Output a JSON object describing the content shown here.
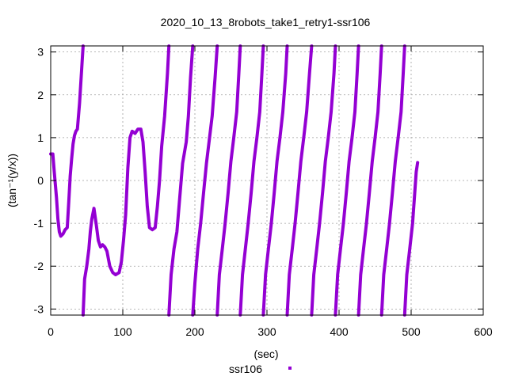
{
  "chart_data": {
    "type": "scatter",
    "title": "2020_10_13_8robots_take1_retry1-ssr106",
    "xlabel": "(sec)",
    "ylabel": "(tan⁻¹(y/x))",
    "xlim": [
      0,
      600
    ],
    "ylim": [
      -3.14159,
      3.14159
    ],
    "xticks": [
      0,
      100,
      200,
      300,
      400,
      500,
      600
    ],
    "xtick_labels": [
      "0",
      "100",
      "200",
      "300",
      "400",
      "500",
      "600"
    ],
    "yticks": [
      -3,
      -2,
      -1,
      0,
      1,
      2,
      3
    ],
    "ytick_labels": [
      "-3",
      "-2",
      "-1",
      "0",
      "1",
      "2",
      "3"
    ],
    "grid": true,
    "legend_position": "bottom-center",
    "series": [
      {
        "name": "ssr106",
        "color": "#9400d3",
        "segments": [
          [
            [
              0,
              0.62
            ],
            [
              3,
              0.62
            ],
            [
              5,
              0.2
            ],
            [
              8,
              -0.4
            ],
            [
              10,
              -0.9
            ],
            [
              12,
              -1.2
            ],
            [
              14,
              -1.3
            ],
            [
              17,
              -1.25
            ],
            [
              20,
              -1.15
            ],
            [
              23,
              -1.1
            ],
            [
              25,
              -0.5
            ],
            [
              27,
              0.1
            ],
            [
              29,
              0.5
            ],
            [
              31,
              0.85
            ],
            [
              33,
              1.05
            ],
            [
              35,
              1.15
            ],
            [
              37,
              1.2
            ],
            [
              40,
              1.8
            ],
            [
              43,
              2.6
            ],
            [
              45,
              3.14
            ]
          ],
          [
            [
              45,
              -3.14
            ],
            [
              47,
              -2.3
            ],
            [
              50,
              -2.0
            ],
            [
              53,
              -1.6
            ],
            [
              55,
              -1.2
            ],
            [
              57,
              -0.9
            ],
            [
              60,
              -0.65
            ],
            [
              63,
              -1.0
            ],
            [
              66,
              -1.4
            ],
            [
              69,
              -1.55
            ],
            [
              72,
              -1.5
            ],
            [
              75,
              -1.55
            ],
            [
              78,
              -1.65
            ],
            [
              82,
              -2.0
            ],
            [
              86,
              -2.15
            ],
            [
              90,
              -2.2
            ],
            [
              95,
              -2.15
            ],
            [
              98,
              -1.9
            ],
            [
              101,
              -1.4
            ],
            [
              104,
              -0.8
            ],
            [
              107,
              0.3
            ],
            [
              110,
              1.0
            ],
            [
              113,
              1.15
            ],
            [
              117,
              1.1
            ],
            [
              121,
              1.2
            ],
            [
              125,
              1.2
            ],
            [
              128,
              0.9
            ],
            [
              131,
              0.2
            ],
            [
              134,
              -0.6
            ],
            [
              137,
              -1.1
            ],
            [
              141,
              -1.15
            ],
            [
              145,
              -1.1
            ],
            [
              148,
              -0.6
            ],
            [
              151,
              0.0
            ],
            [
              154,
              0.8
            ],
            [
              158,
              1.5
            ],
            [
              162,
              2.5
            ],
            [
              164,
              3.14
            ]
          ],
          [
            [
              164,
              -3.14
            ],
            [
              167,
              -2.2
            ],
            [
              171,
              -1.6
            ],
            [
              175,
              -1.2
            ],
            [
              179,
              -0.4
            ],
            [
              183,
              0.4
            ],
            [
              188,
              0.9
            ],
            [
              191,
              1.5
            ],
            [
              194,
              2.4
            ],
            [
              197,
              3.14
            ]
          ],
          [
            [
              197,
              -3.14
            ],
            [
              200,
              -2.4
            ],
            [
              204,
              -1.6
            ],
            [
              208,
              -1.0
            ],
            [
              212,
              -0.3
            ],
            [
              216,
              0.4
            ],
            [
              220,
              0.95
            ],
            [
              224,
              1.5
            ],
            [
              228,
              2.4
            ],
            [
              231,
              3.14
            ]
          ],
          [
            [
              231,
              -3.14
            ],
            [
              234,
              -2.2
            ],
            [
              238,
              -1.6
            ],
            [
              242,
              -1.0
            ],
            [
              246,
              -0.3
            ],
            [
              250,
              0.45
            ],
            [
              254,
              1.0
            ],
            [
              258,
              1.6
            ],
            [
              261,
              2.5
            ],
            [
              263,
              3.14
            ]
          ],
          [
            [
              263,
              -3.14
            ],
            [
              266,
              -2.2
            ],
            [
              270,
              -1.6
            ],
            [
              274,
              -1.0
            ],
            [
              278,
              -0.3
            ],
            [
              282,
              0.45
            ],
            [
              286,
              1.0
            ],
            [
              290,
              1.6
            ],
            [
              293,
              2.5
            ],
            [
              295,
              3.14
            ]
          ],
          [
            [
              295,
              -3.14
            ],
            [
              298,
              -2.2
            ],
            [
              302,
              -1.6
            ],
            [
              306,
              -1.0
            ],
            [
              310,
              -0.3
            ],
            [
              314,
              0.45
            ],
            [
              318,
              1.0
            ],
            [
              322,
              1.6
            ],
            [
              326,
              2.5
            ],
            [
              328,
              3.14
            ]
          ],
          [
            [
              328,
              -3.14
            ],
            [
              331,
              -2.2
            ],
            [
              335,
              -1.6
            ],
            [
              339,
              -1.0
            ],
            [
              343,
              -0.3
            ],
            [
              347,
              0.45
            ],
            [
              351,
              1.0
            ],
            [
              355,
              1.6
            ],
            [
              359,
              2.5
            ],
            [
              362,
              3.14
            ]
          ],
          [
            [
              362,
              -3.14
            ],
            [
              365,
              -2.2
            ],
            [
              369,
              -1.6
            ],
            [
              373,
              -1.0
            ],
            [
              377,
              -0.3
            ],
            [
              381,
              0.45
            ],
            [
              385,
              1.0
            ],
            [
              389,
              1.6
            ],
            [
              393,
              2.5
            ],
            [
              395,
              3.14
            ]
          ],
          [
            [
              395,
              -3.14
            ],
            [
              398,
              -2.2
            ],
            [
              402,
              -1.6
            ],
            [
              406,
              -1.0
            ],
            [
              410,
              -0.3
            ],
            [
              414,
              0.45
            ],
            [
              418,
              1.0
            ],
            [
              422,
              1.6
            ],
            [
              425,
              2.5
            ],
            [
              427,
              3.14
            ]
          ],
          [
            [
              427,
              -3.14
            ],
            [
              430,
              -2.2
            ],
            [
              434,
              -1.6
            ],
            [
              438,
              -1.0
            ],
            [
              442,
              -0.3
            ],
            [
              446,
              0.45
            ],
            [
              450,
              1.0
            ],
            [
              454,
              1.6
            ],
            [
              457,
              2.5
            ],
            [
              459,
              3.14
            ]
          ],
          [
            [
              459,
              -3.14
            ],
            [
              462,
              -2.2
            ],
            [
              466,
              -1.6
            ],
            [
              470,
              -1.0
            ],
            [
              474,
              -0.3
            ],
            [
              478,
              0.45
            ],
            [
              482,
              1.0
            ],
            [
              486,
              1.6
            ],
            [
              489,
              2.5
            ],
            [
              491,
              3.14
            ]
          ],
          [
            [
              491,
              -3.14
            ],
            [
              494,
              -2.2
            ],
            [
              498,
              -1.6
            ],
            [
              502,
              -1.0
            ],
            [
              505,
              -0.3
            ],
            [
              507,
              0.2
            ],
            [
              509,
              0.42
            ]
          ]
        ]
      }
    ]
  }
}
